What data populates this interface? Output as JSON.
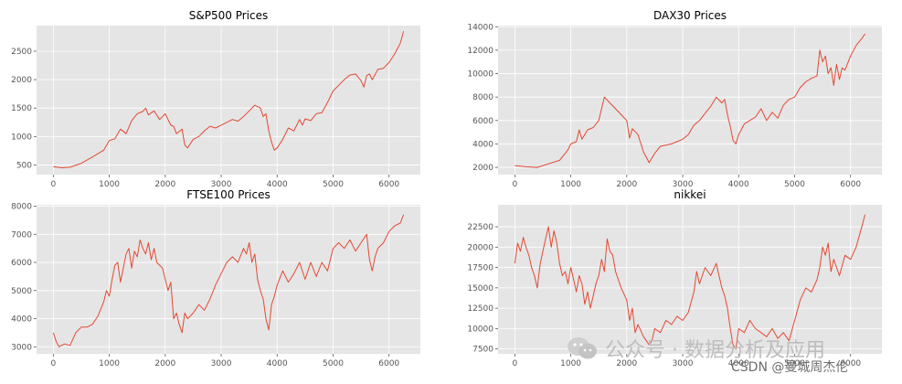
{
  "chart_data": [
    {
      "type": "line",
      "title": "S&P500 Prices",
      "xlim": [
        -300,
        6560
      ],
      "ylim": [
        330,
        2950
      ],
      "xticks": [
        0,
        1000,
        2000,
        3000,
        4000,
        5000,
        6000
      ],
      "yticks": [
        500,
        1000,
        1500,
        2000,
        2500
      ],
      "series": [
        {
          "x": [
            0,
            150,
            300,
            500,
            700,
            900,
            1000,
            1100,
            1200,
            1300,
            1400,
            1500,
            1600,
            1650,
            1700,
            1800,
            1900,
            2000,
            2100,
            2150,
            2200,
            2300,
            2350,
            2400,
            2500,
            2600,
            2700,
            2800,
            2900,
            3000,
            3100,
            3200,
            3300,
            3400,
            3500,
            3600,
            3700,
            3750,
            3800,
            3850,
            3900,
            3950,
            4000,
            4100,
            4200,
            4300,
            4400,
            4450,
            4500,
            4600,
            4700,
            4800,
            4900,
            5000,
            5100,
            5200,
            5300,
            5400,
            5500,
            5550,
            5600,
            5650,
            5700,
            5800,
            5900,
            6000,
            6100,
            6200,
            6260
          ],
          "y": [
            470,
            450,
            460,
            530,
            640,
            760,
            930,
            960,
            1130,
            1050,
            1280,
            1400,
            1440,
            1500,
            1380,
            1450,
            1300,
            1400,
            1200,
            1180,
            1050,
            1130,
            850,
            800,
            950,
            1000,
            1100,
            1180,
            1150,
            1200,
            1250,
            1300,
            1270,
            1350,
            1450,
            1550,
            1500,
            1350,
            1400,
            1100,
            900,
            760,
            800,
            950,
            1150,
            1100,
            1300,
            1200,
            1310,
            1280,
            1400,
            1420,
            1600,
            1800,
            1900,
            2000,
            2080,
            2100,
            1980,
            1870,
            2070,
            2100,
            2000,
            2180,
            2200,
            2300,
            2450,
            2640,
            2850
          ]
        }
      ]
    },
    {
      "type": "line",
      "title": "DAX30 Prices",
      "xlim": [
        -300,
        6560
      ],
      "ylim": [
        1380,
        14100
      ],
      "xticks": [
        0,
        1000,
        2000,
        3000,
        4000,
        5000,
        6000
      ],
      "yticks": [
        2000,
        4000,
        6000,
        8000,
        10000,
        12000,
        14000
      ],
      "series": [
        {
          "x": [
            0,
            200,
            400,
            600,
            800,
            950,
            1000,
            1100,
            1150,
            1200,
            1300,
            1400,
            1500,
            1600,
            1700,
            1800,
            1900,
            2000,
            2050,
            2100,
            2200,
            2300,
            2400,
            2500,
            2600,
            2700,
            2800,
            2900,
            3000,
            3100,
            3200,
            3300,
            3400,
            3500,
            3600,
            3700,
            3750,
            3800,
            3850,
            3900,
            3950,
            4000,
            4100,
            4200,
            4300,
            4400,
            4500,
            4600,
            4700,
            4800,
            4900,
            5000,
            5100,
            5200,
            5300,
            5400,
            5450,
            5500,
            5550,
            5600,
            5650,
            5700,
            5750,
            5800,
            5850,
            5900,
            6000,
            6100,
            6200,
            6260
          ],
          "y": [
            2150,
            2050,
            2000,
            2300,
            2600,
            3500,
            4000,
            4200,
            5200,
            4400,
            5200,
            5400,
            6000,
            8000,
            7500,
            7000,
            6500,
            6000,
            4500,
            5300,
            4800,
            3300,
            2400,
            3200,
            3800,
            3900,
            4000,
            4200,
            4400,
            4800,
            5600,
            6000,
            6600,
            7200,
            8000,
            7500,
            7800,
            6500,
            5500,
            4300,
            4000,
            4800,
            5700,
            6000,
            6300,
            7000,
            6000,
            6700,
            6200,
            7300,
            7800,
            8000,
            8800,
            9300,
            9600,
            9800,
            12000,
            11000,
            11500,
            10000,
            10500,
            9000,
            10800,
            9500,
            10500,
            10300,
            11500,
            12400,
            13000,
            13400
          ]
        }
      ]
    },
    {
      "type": "line",
      "title": "FTSE100 Prices",
      "xlim": [
        -300,
        6560
      ],
      "ylim": [
        2750,
        8050
      ],
      "xticks": [
        0,
        1000,
        2000,
        3000,
        4000,
        5000,
        6000
      ],
      "yticks": [
        3000,
        4000,
        5000,
        6000,
        7000,
        8000
      ],
      "series": [
        {
          "x": [
            0,
            50,
            100,
            200,
            300,
            400,
            500,
            600,
            700,
            800,
            900,
            950,
            1000,
            1050,
            1100,
            1150,
            1200,
            1250,
            1300,
            1350,
            1400,
            1450,
            1500,
            1550,
            1600,
            1650,
            1700,
            1750,
            1800,
            1850,
            1900,
            1950,
            2000,
            2050,
            2100,
            2150,
            2200,
            2250,
            2300,
            2350,
            2400,
            2500,
            2600,
            2700,
            2800,
            2900,
            3000,
            3100,
            3200,
            3300,
            3400,
            3450,
            3500,
            3550,
            3600,
            3650,
            3700,
            3750,
            3800,
            3850,
            3900,
            3950,
            4000,
            4100,
            4200,
            4300,
            4400,
            4500,
            4600,
            4700,
            4800,
            4900,
            5000,
            5100,
            5200,
            5300,
            5400,
            5500,
            5600,
            5650,
            5700,
            5750,
            5800,
            5900,
            6000,
            6100,
            6200,
            6260
          ],
          "y": [
            3500,
            3200,
            3000,
            3100,
            3050,
            3500,
            3700,
            3700,
            3800,
            4100,
            4600,
            5000,
            4800,
            5400,
            5900,
            6000,
            5300,
            5800,
            6300,
            6500,
            5800,
            6400,
            6200,
            6800,
            6500,
            6300,
            6700,
            6100,
            6500,
            6000,
            5900,
            5800,
            5400,
            5000,
            5300,
            4000,
            4200,
            3800,
            3500,
            4200,
            4000,
            4200,
            4500,
            4300,
            4700,
            5200,
            5600,
            6000,
            6200,
            6000,
            6500,
            6300,
            6700,
            6000,
            6300,
            5400,
            5000,
            4700,
            4000,
            3600,
            4500,
            4800,
            5200,
            5700,
            5300,
            5600,
            6000,
            5400,
            6000,
            5500,
            6000,
            5700,
            6500,
            6700,
            6500,
            6800,
            6400,
            6700,
            7000,
            6100,
            5700,
            6200,
            6500,
            6700,
            7100,
            7300,
            7400,
            7700
          ]
        }
      ]
    },
    {
      "type": "line",
      "title": "nikkei",
      "xlim": [
        -300,
        6560
      ],
      "ylim": [
        6900,
        25200
      ],
      "xticks": [
        0,
        1000,
        2000,
        3000,
        4000,
        5000,
        6000
      ],
      "yticks": [
        7500,
        10000,
        12500,
        15000,
        17500,
        20000,
        22500
      ],
      "series": [
        {
          "x": [
            0,
            50,
            100,
            150,
            200,
            250,
            300,
            350,
            400,
            450,
            500,
            550,
            600,
            650,
            700,
            750,
            800,
            850,
            900,
            950,
            1000,
            1050,
            1100,
            1150,
            1200,
            1250,
            1300,
            1350,
            1400,
            1450,
            1500,
            1550,
            1600,
            1650,
            1700,
            1750,
            1800,
            1850,
            1900,
            2000,
            2050,
            2100,
            2150,
            2200,
            2300,
            2400,
            2450,
            2500,
            2600,
            2700,
            2800,
            2900,
            3000,
            3100,
            3200,
            3250,
            3300,
            3400,
            3500,
            3600,
            3650,
            3700,
            3750,
            3800,
            3850,
            3900,
            3950,
            4000,
            4100,
            4200,
            4300,
            4400,
            4500,
            4600,
            4700,
            4800,
            4900,
            5000,
            5100,
            5200,
            5300,
            5400,
            5450,
            5500,
            5550,
            5600,
            5650,
            5700,
            5800,
            5900,
            6000,
            6100,
            6200,
            6260
          ],
          "y": [
            18000,
            20500,
            19500,
            21200,
            20000,
            19000,
            17500,
            16500,
            15000,
            17800,
            19500,
            21000,
            22500,
            20000,
            22000,
            20500,
            18000,
            16500,
            17000,
            15500,
            17500,
            16000,
            14500,
            16500,
            15500,
            13000,
            14500,
            12500,
            14000,
            15500,
            16500,
            18500,
            17000,
            21000,
            19500,
            19000,
            17000,
            16000,
            15000,
            13500,
            11000,
            12500,
            9500,
            10500,
            9000,
            8000,
            8500,
            10000,
            9500,
            11000,
            10500,
            11500,
            11000,
            12000,
            14500,
            17000,
            15500,
            17500,
            16500,
            18000,
            16500,
            15000,
            14000,
            12500,
            10000,
            8000,
            7500,
            10000,
            9500,
            11000,
            10000,
            9500,
            9000,
            10000,
            8800,
            9500,
            8500,
            11000,
            13500,
            15000,
            14500,
            16000,
            17500,
            20000,
            19000,
            20500,
            17000,
            18500,
            16500,
            19000,
            18500,
            20000,
            22500,
            24000
          ]
        }
      ]
    }
  ],
  "watermark": {
    "icon": "wechat-icon",
    "text": "公众号 · 数据分析及应用",
    "credit": "CSDN @曼城周杰伦"
  },
  "colors": {
    "line": "#e24a33",
    "plot_background": "#e5e5e5",
    "grid": "#ffffff"
  }
}
